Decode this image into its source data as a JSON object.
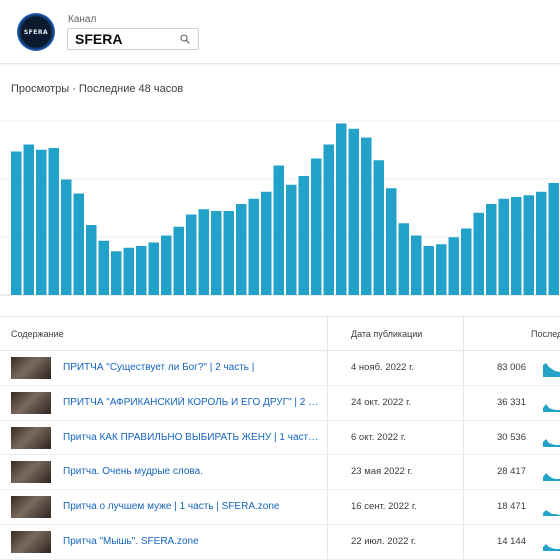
{
  "header": {
    "avatar_text": "SFERA",
    "channel_label": "Канал",
    "channel_value": "SFERA"
  },
  "chart_title": "Просмотры · Последние 48 часов",
  "chart_data": {
    "type": "bar",
    "title": "Просмотры · Последние 48 часов",
    "color": "#22a2c8",
    "values": [
      82,
      86,
      83,
      84,
      66,
      58,
      40,
      31,
      25,
      27,
      28,
      30,
      34,
      39,
      46,
      49,
      48,
      48,
      52,
      55,
      59,
      74,
      63,
      68,
      78,
      86,
      98,
      95,
      90,
      77,
      61,
      41,
      34,
      28,
      29,
      33,
      38,
      47,
      52,
      55,
      56,
      57,
      59,
      64
    ]
  },
  "table": {
    "headers": {
      "content": "Содержание",
      "date": "Дата публикации",
      "views": "Послед"
    },
    "rows": [
      {
        "title": "ПРИТЧА \"Существует ли Бог?\" | 2 часть |",
        "date": "4 нояб. 2022 г.",
        "views": "83 006"
      },
      {
        "title": "ПРИТЧА \"АФРИКАНСКИЙ КОРОЛЬ И ЕГО ДРУГ\" | 2 ЧАСТ...",
        "date": "24 окт. 2022 г.",
        "views": "36 331"
      },
      {
        "title": "Притча КАК ПРАВИЛЬНО ВЫБИРАТЬ ЖЕНУ | 1 часть | SF...",
        "date": "6 окт. 2022 г.",
        "views": "30 536"
      },
      {
        "title": "Притча. Очень мудрые слова.",
        "date": "23 мая 2022 г.",
        "views": "28 417"
      },
      {
        "title": "Притча о лучшем муже | 1 часть | SFERA.zone",
        "date": "16 сент. 2022 г.",
        "views": "18 471"
      },
      {
        "title": "Притча \"Мышь\". SFERA.zone",
        "date": "22 июл. 2022 г.",
        "views": "14 144"
      }
    ]
  }
}
